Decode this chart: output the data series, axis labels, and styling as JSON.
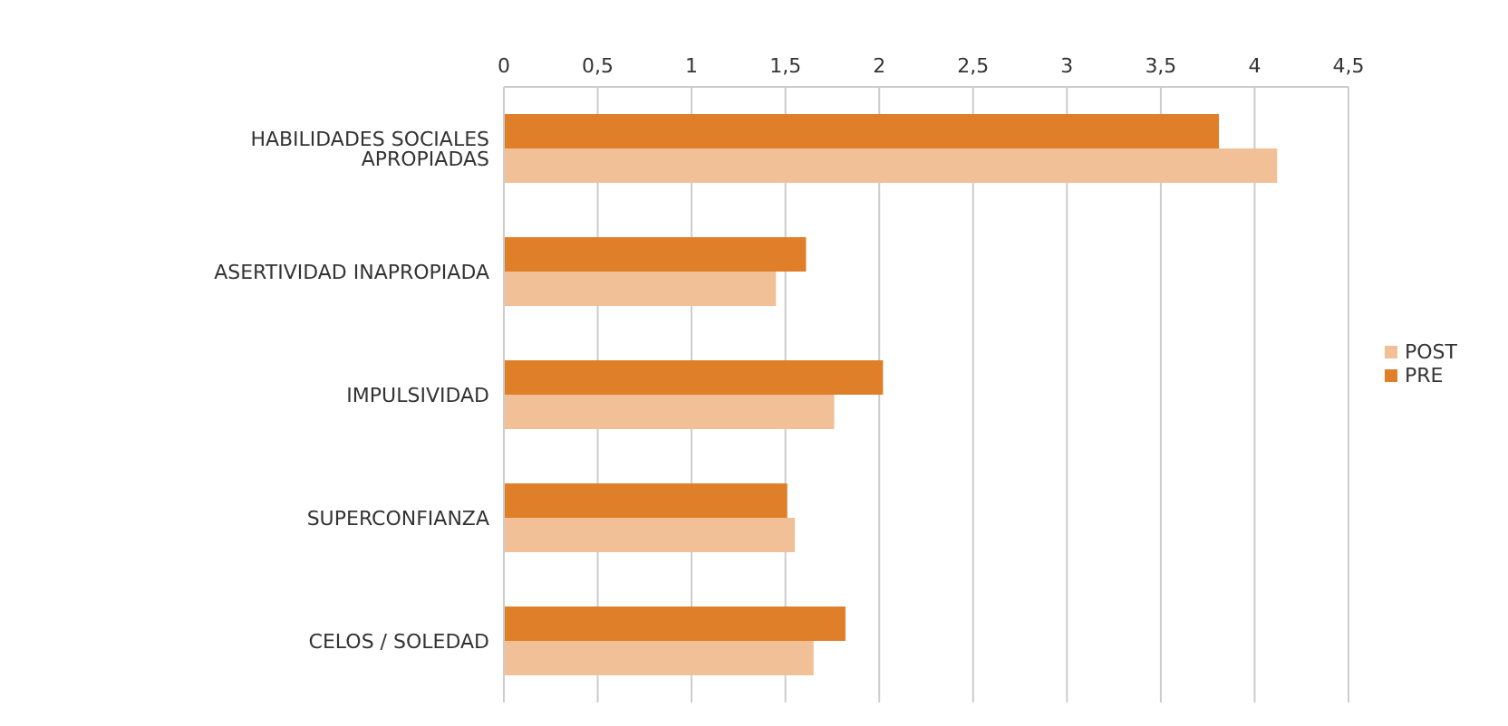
{
  "chart_data": {
    "type": "bar",
    "orientation": "horizontal",
    "categories": [
      "HABILIDADES SOCIALES APROPIADAS",
      "ASERTIVIDAD INAPROPIADA",
      "IMPULSIVIDAD",
      "SUPERCONFIANZA",
      "CELOS / SOLEDAD"
    ],
    "series": [
      {
        "name": "PRE",
        "color": "#e07f2a",
        "values": [
          3.81,
          1.61,
          2.02,
          1.51,
          1.82
        ]
      },
      {
        "name": "POST",
        "color": "#f2c096",
        "values": [
          4.12,
          1.45,
          1.76,
          1.55,
          1.65
        ]
      }
    ],
    "xlim": [
      0,
      4.5
    ],
    "xticks": [
      0,
      {
        "value": 0.5,
        "label": "0,5"
      },
      1,
      {
        "value": 1.5,
        "label": "1,5"
      },
      2,
      {
        "value": 2.5,
        "label": "2,5"
      },
      3,
      {
        "value": 3.5,
        "label": "3,5"
      },
      4,
      {
        "value": 4.5,
        "label": "4,5"
      }
    ],
    "grid": "x",
    "legend": "right"
  }
}
